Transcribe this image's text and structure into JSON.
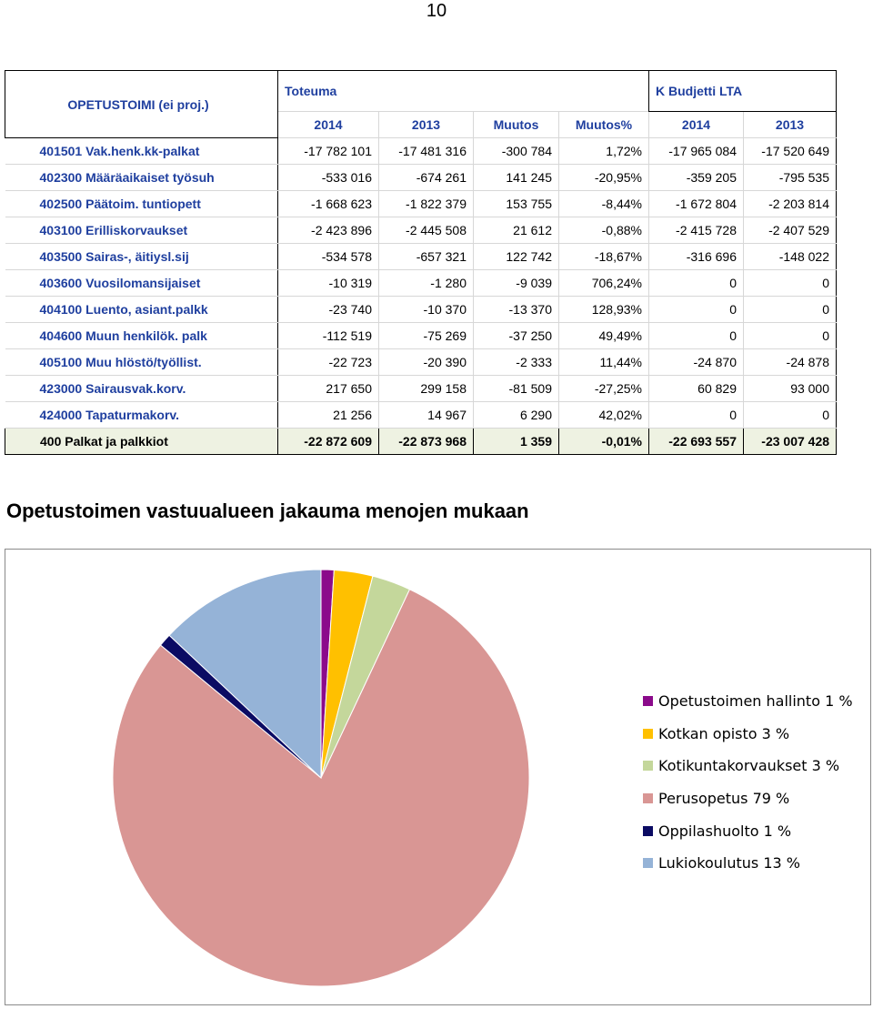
{
  "page_number": "10",
  "table": {
    "title": "OPETUSTOIMI (ei proj.)",
    "groups": {
      "actual": "Toteuma",
      "budget": "K Budjetti LTA"
    },
    "columns": [
      "2014",
      "2013",
      "Muutos",
      "Muutos%",
      "2014",
      "2013"
    ],
    "rows": [
      {
        "label": "401501 Vak.henk.kk-palkat",
        "cells": [
          "-17 782 101",
          "-17 481 316",
          "-300 784",
          "1,72%",
          "-17 965 084",
          "-17 520 649"
        ]
      },
      {
        "label": "402300 Määräaikaiset työsuh",
        "cells": [
          "-533 016",
          "-674 261",
          "141 245",
          "-20,95%",
          "-359 205",
          "-795 535"
        ]
      },
      {
        "label": "402500 Päätoim. tuntiopett",
        "cells": [
          "-1 668 623",
          "-1 822 379",
          "153 755",
          "-8,44%",
          "-1 672 804",
          "-2 203 814"
        ]
      },
      {
        "label": "403100 Erilliskorvaukset",
        "cells": [
          "-2 423 896",
          "-2 445 508",
          "21 612",
          "-0,88%",
          "-2 415 728",
          "-2 407 529"
        ]
      },
      {
        "label": "403500 Sairas-, äitiysl.sij",
        "cells": [
          "-534 578",
          "-657 321",
          "122 742",
          "-18,67%",
          "-316 696",
          "-148 022"
        ]
      },
      {
        "label": "403600 Vuosilomansijaiset",
        "cells": [
          "-10 319",
          "-1 280",
          "-9 039",
          "706,24%",
          "0",
          "0"
        ]
      },
      {
        "label": "404100 Luento, asiant.palkk",
        "cells": [
          "-23 740",
          "-10 370",
          "-13 370",
          "128,93%",
          "0",
          "0"
        ]
      },
      {
        "label": "404600 Muun henkilök. palk",
        "cells": [
          "-112 519",
          "-75 269",
          "-37 250",
          "49,49%",
          "0",
          "0"
        ]
      },
      {
        "label": "405100 Muu hlöstö/työllist.",
        "cells": [
          "-22 723",
          "-20 390",
          "-2 333",
          "11,44%",
          "-24 870",
          "-24 878"
        ]
      },
      {
        "label": "423000 Sairausvak.korv.",
        "cells": [
          "217 650",
          "299 158",
          "-81 509",
          "-27,25%",
          "60 829",
          "93 000"
        ]
      },
      {
        "label": "424000 Tapaturmakorv.",
        "cells": [
          "21 256",
          "14 967",
          "6 290",
          "42,02%",
          "0",
          "0"
        ]
      }
    ],
    "total": {
      "label": "400 Palkat ja palkkiot",
      "cells": [
        "-22 872 609",
        "-22 873 968",
        "1 359",
        "-0,01%",
        "-22 693 557",
        "-23 007 428"
      ]
    }
  },
  "chart_title": "Opetustoimen vastuualueen jakauma menojen mukaan",
  "chart_data": {
    "type": "pie",
    "title": "Opetustoimen vastuualueen jakauma menojen mukaan",
    "legend_position": "right",
    "slices": [
      {
        "label": "Opetustoimen hallinto 1 %",
        "value": 1,
        "color": "#8B0A8B"
      },
      {
        "label": "Kotkan opisto 3 %",
        "value": 3,
        "color": "#FFC000"
      },
      {
        "label": "Kotikuntakorvaukset 3 %",
        "value": 3,
        "color": "#C4D79B"
      },
      {
        "label": "Perusopetus 79 %",
        "value": 79,
        "color": "#D99694"
      },
      {
        "label": "Oppilashuolto 1 %",
        "value": 1,
        "color": "#0B0B63"
      },
      {
        "label": "Lukiokoulutus 13 %",
        "value": 13,
        "color": "#95B3D7"
      }
    ]
  }
}
